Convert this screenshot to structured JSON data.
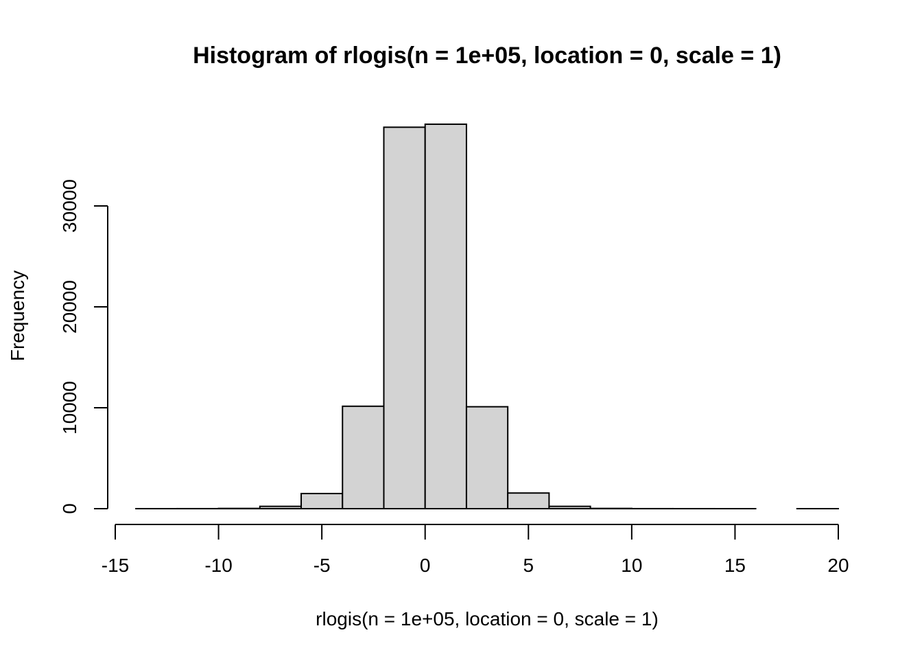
{
  "chart_data": {
    "type": "bar",
    "title": "Histogram of rlogis(n = 1e+05, location = 0, scale = 1)",
    "xlabel": "rlogis(n = 1e+05, location = 0, scale = 1)",
    "ylabel": "Frequency",
    "xlim": [
      -15,
      20
    ],
    "ylim": [
      0,
      30000
    ],
    "x_ticks": [
      -15,
      -10,
      -5,
      0,
      5,
      10,
      15,
      20
    ],
    "x_tick_labels": [
      "-15",
      "-10",
      "-5",
      "0",
      "5",
      "10",
      "15",
      "20"
    ],
    "y_ticks": [
      0,
      10000,
      20000,
      30000
    ],
    "y_tick_labels": [
      "0",
      "10000",
      "20000",
      "30000"
    ],
    "bin_edges": [
      -14,
      -12,
      -10,
      -8,
      -6,
      -4,
      -2,
      0,
      2,
      4,
      6,
      8,
      10,
      12,
      14,
      16,
      18,
      20
    ],
    "values": [
      2,
      5,
      25,
      230,
      1500,
      10150,
      37800,
      38100,
      10100,
      1550,
      230,
      25,
      5,
      2,
      1,
      0,
      1
    ],
    "bar_color": "#d3d3d3",
    "edge_color": "#000000",
    "grid": false
  }
}
